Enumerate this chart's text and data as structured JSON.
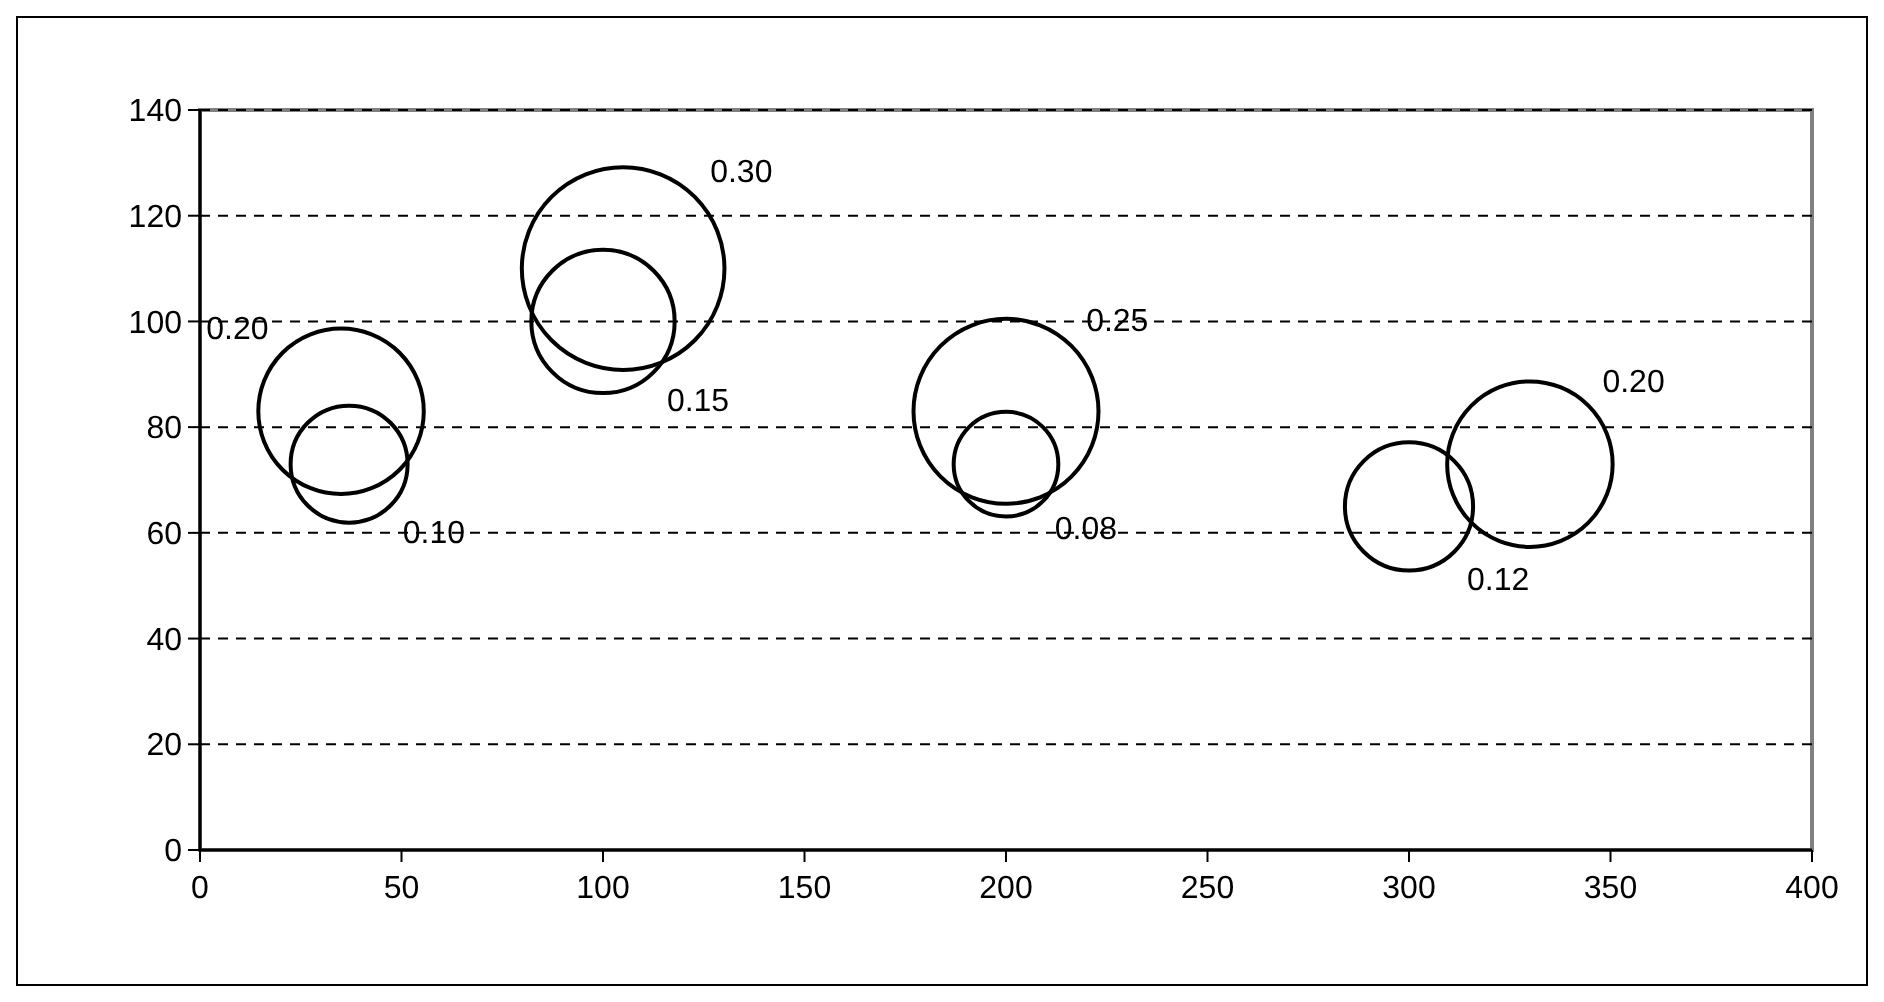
{
  "chart_data": {
    "type": "bubble",
    "x": [
      35,
      37,
      105,
      100,
      200,
      200,
      300,
      330
    ],
    "values": [
      83,
      73,
      110,
      100,
      83,
      73,
      65,
      73
    ],
    "sizes": [
      0.2,
      0.1,
      0.3,
      0.15,
      0.25,
      0.08,
      0.12,
      0.2
    ],
    "value_labels": [
      "0.20",
      "0.10",
      "0.30",
      "0.15",
      "0.25",
      "0.08",
      "0.12",
      "0.20"
    ],
    "color": "#000000",
    "xlim": [
      0,
      400
    ],
    "xticks": [
      0,
      50,
      100,
      150,
      200,
      250,
      300,
      350,
      400
    ],
    "ylim": [
      0,
      140
    ],
    "yticks": [
      0,
      20,
      40,
      60,
      80,
      100,
      120,
      140
    ],
    "grid": "y",
    "line_style": "dashed"
  }
}
